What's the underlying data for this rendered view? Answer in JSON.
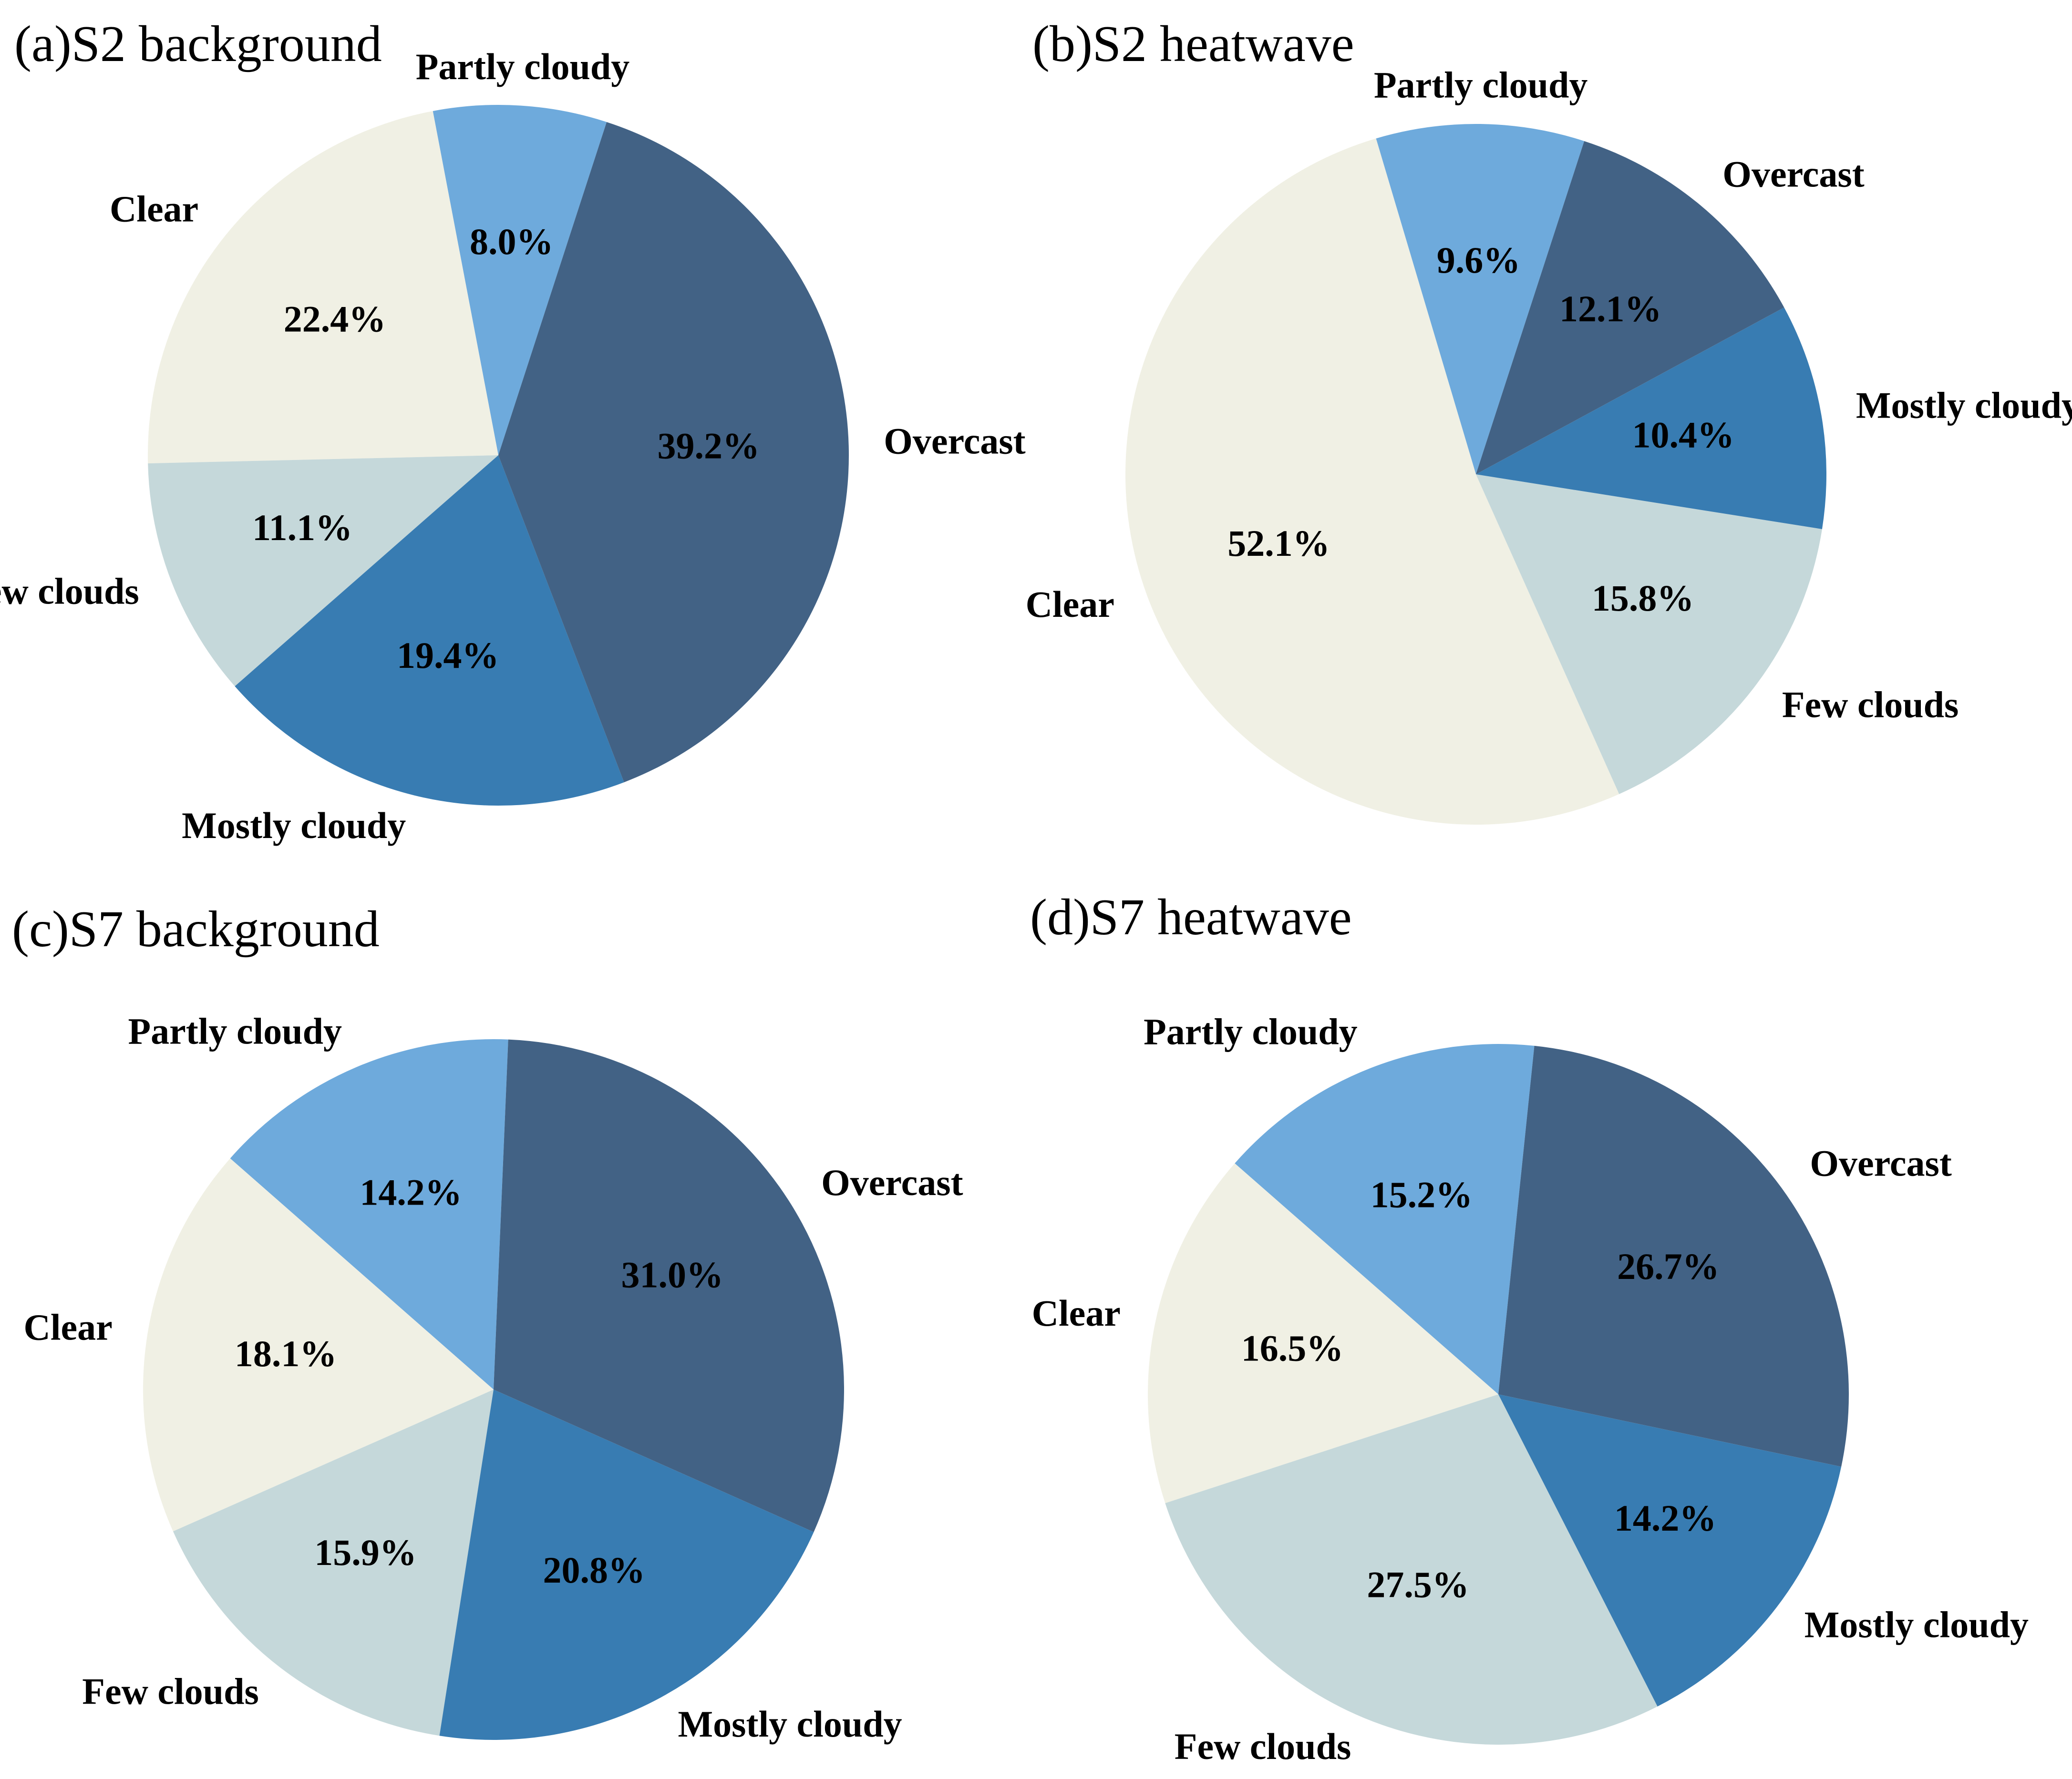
{
  "colors": {
    "Clear": "#f0f0e4",
    "Partly cloudy": "#6eaadc",
    "Overcast": "#426285",
    "Mostly cloudy": "#387cb2",
    "Few clouds": "#c5d8da"
  },
  "chart_data": [
    {
      "type": "pie",
      "title": "(a)S2 background",
      "slices": [
        {
          "label": "Partly cloudy",
          "value": 8.0,
          "display": "8.0%"
        },
        {
          "label": "Clear",
          "value": 22.4,
          "display": "22.4%"
        },
        {
          "label": "Few clouds",
          "value": 11.1,
          "display": "11.1%"
        },
        {
          "label": "Mostly cloudy",
          "value": 19.4,
          "display": "19.4%"
        },
        {
          "label": "Overcast",
          "value": 39.2,
          "display": "39.2%"
        }
      ]
    },
    {
      "type": "pie",
      "title": "(b)S2 heatwave",
      "slices": [
        {
          "label": "Partly cloudy",
          "value": 9.6,
          "display": "9.6%"
        },
        {
          "label": "Clear",
          "value": 52.1,
          "display": "52.1%"
        },
        {
          "label": "Few clouds",
          "value": 15.8,
          "display": "15.8%"
        },
        {
          "label": "Mostly cloudy",
          "value": 10.4,
          "display": "10.4%"
        },
        {
          "label": "Overcast",
          "value": 12.1,
          "display": "12.1%"
        }
      ]
    },
    {
      "type": "pie",
      "title": "(c)S7 background",
      "slices": [
        {
          "label": "Partly cloudy",
          "value": 14.2,
          "display": "14.2%"
        },
        {
          "label": "Clear",
          "value": 18.1,
          "display": "18.1%"
        },
        {
          "label": "Few clouds",
          "value": 15.9,
          "display": "15.9%"
        },
        {
          "label": "Mostly cloudy",
          "value": 20.8,
          "display": "20.8%"
        },
        {
          "label": "Overcast",
          "value": 31.0,
          "display": "31.0%"
        }
      ]
    },
    {
      "type": "pie",
      "title": "(d)S7 heatwave",
      "slices": [
        {
          "label": "Partly cloudy",
          "value": 15.2,
          "display": "15.2%"
        },
        {
          "label": "Clear",
          "value": 16.5,
          "display": "16.5%"
        },
        {
          "label": "Few clouds",
          "value": 27.5,
          "display": "27.5%"
        },
        {
          "label": "Mostly cloudy",
          "value": 14.2,
          "display": "14.2%"
        },
        {
          "label": "Overcast",
          "value": 26.7,
          "display": "26.7%"
        }
      ]
    }
  ]
}
